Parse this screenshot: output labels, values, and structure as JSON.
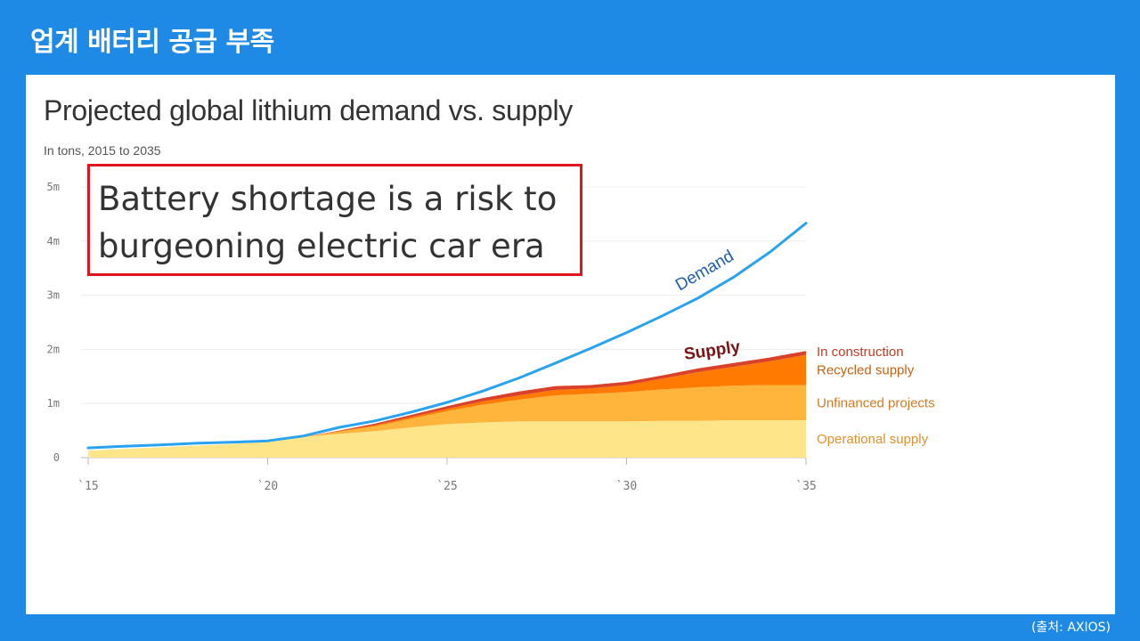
{
  "slide": {
    "title": "업계 배터리 공급 부족",
    "source": "(출처: AXIOS)"
  },
  "callout": {
    "line1": "Battery shortage is a risk to",
    "line2": "burgeoning electric car era"
  },
  "colors": {
    "background": "#1e8ae6",
    "demand": "#2aa3ef",
    "demand_label": "#1f5ea8",
    "supply_label": "#7a1414",
    "operational": "#ffe58a",
    "unfinanced": "#ffb43c",
    "recycled": "#ff7a00",
    "in_construction": "#d9412b",
    "callout_border": "#e0141e"
  },
  "chart_data": {
    "type": "area",
    "title": "Projected global lithium demand vs. supply",
    "subtitle": "In tons, 2015 to 2035",
    "x": [
      2015,
      2016,
      2017,
      2018,
      2019,
      2020,
      2021,
      2022,
      2023,
      2024,
      2025,
      2026,
      2027,
      2028,
      2029,
      2030,
      2031,
      2032,
      2033,
      2034,
      2035
    ],
    "xlim": [
      2015,
      2035
    ],
    "ylim": [
      0,
      5000000
    ],
    "x_ticks": [
      2015,
      2020,
      2025,
      2030,
      2035
    ],
    "x_tick_labels": [
      "`15",
      "`20",
      "`25",
      "`30",
      "`35"
    ],
    "y_ticks": [
      0,
      1000000,
      2000000,
      3000000,
      4000000,
      5000000
    ],
    "y_tick_labels": [
      "0",
      "1m",
      "2m",
      "3m",
      "4m",
      "5m"
    ],
    "grid": true,
    "stacked_series": [
      {
        "name": "Operational supply",
        "color": "#ffe58a",
        "label_color": "#e3902e",
        "values": [
          130000,
          160000,
          190000,
          220000,
          250000,
          290000,
          380000,
          440000,
          490000,
          560000,
          620000,
          650000,
          670000,
          670000,
          670000,
          670000,
          680000,
          680000,
          690000,
          690000,
          690000
        ]
      },
      {
        "name": "Unfinanced projects",
        "color": "#ffb43c",
        "label_color": "#d9781f",
        "values": [
          0,
          0,
          0,
          0,
          0,
          0,
          0,
          40000,
          90000,
          160000,
          240000,
          330000,
          400000,
          480000,
          510000,
          540000,
          580000,
          620000,
          640000,
          650000,
          650000
        ]
      },
      {
        "name": "Recycled supply",
        "color": "#ff7a00",
        "label_color": "#c46410",
        "values": [
          0,
          0,
          0,
          0,
          0,
          0,
          0,
          10000,
          20000,
          30000,
          40000,
          60000,
          80000,
          100000,
          100000,
          130000,
          200000,
          280000,
          350000,
          440000,
          560000
        ]
      },
      {
        "name": "In construction",
        "color": "#d9412b",
        "label_color": "#c23a24",
        "values": [
          0,
          0,
          0,
          0,
          0,
          0,
          0,
          10000,
          30000,
          40000,
          50000,
          60000,
          70000,
          70000,
          60000,
          60000,
          60000,
          70000,
          70000,
          70000,
          70000
        ]
      }
    ],
    "line_series": [
      {
        "name": "Demand",
        "color": "#2aa3ef",
        "values": [
          180000,
          210000,
          235000,
          265000,
          285000,
          310000,
          400000,
          560000,
          680000,
          840000,
          1020000,
          1230000,
          1470000,
          1740000,
          2020000,
          2310000,
          2620000,
          2950000,
          3340000,
          3800000,
          4330000
        ]
      }
    ],
    "annotations": [
      {
        "text": "Demand",
        "color": "#1f5ea8"
      },
      {
        "text": "Supply",
        "color": "#7a1414"
      }
    ]
  }
}
